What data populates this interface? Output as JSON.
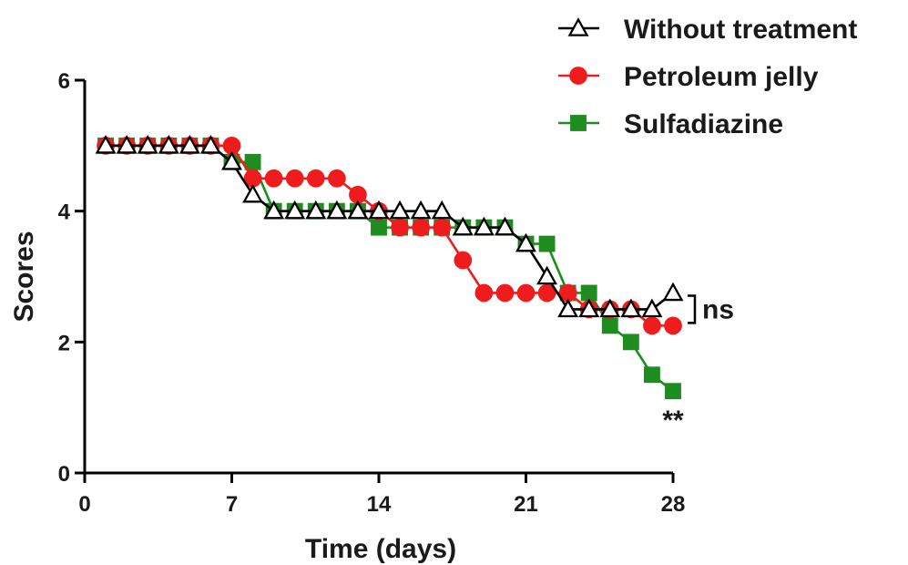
{
  "chart_data": {
    "type": "line",
    "title": "",
    "xlabel": "Time (days)",
    "ylabel": "Scores",
    "xlim": [
      0,
      28
    ],
    "ylim": [
      0,
      6
    ],
    "xticks": [
      0,
      7,
      14,
      21,
      28
    ],
    "yticks": [
      0,
      2,
      4,
      6
    ],
    "grid": false,
    "legend_position": "top-right",
    "x": [
      1,
      2,
      3,
      4,
      5,
      6,
      7,
      8,
      9,
      10,
      11,
      12,
      13,
      14,
      15,
      16,
      17,
      18,
      19,
      20,
      21,
      22,
      23,
      24,
      25,
      26,
      27,
      28
    ],
    "series": [
      {
        "name": "Without treatment",
        "color": "#000000",
        "marker": "triangle-open",
        "values": [
          5,
          5,
          5,
          5,
          5,
          5,
          4.75,
          4.25,
          4,
          4,
          4,
          4,
          4,
          4,
          4,
          4,
          4,
          3.75,
          3.75,
          3.75,
          3.5,
          3,
          2.5,
          2.5,
          2.5,
          2.5,
          2.5,
          2.75
        ]
      },
      {
        "name": "Petroleum jelly",
        "color": "#ee1c1c",
        "marker": "circle",
        "values": [
          5,
          5,
          5,
          5,
          5,
          5,
          5,
          4.5,
          4.5,
          4.5,
          4.5,
          4.5,
          4.25,
          4,
          3.75,
          3.75,
          3.75,
          3.25,
          2.75,
          2.75,
          2.75,
          2.75,
          2.75,
          2.5,
          2.5,
          2.5,
          2.25,
          2.25
        ]
      },
      {
        "name": "Sulfadiazine",
        "color": "#1e8c1e",
        "marker": "square",
        "values": [
          5,
          5,
          5,
          5,
          5,
          5,
          4.75,
          4.75,
          4,
          4,
          4,
          4,
          4,
          3.75,
          3.75,
          3.75,
          3.75,
          3.75,
          3.75,
          3.75,
          3.5,
          3.5,
          2.75,
          2.75,
          2.25,
          2,
          1.5,
          1.25
        ]
      }
    ],
    "annotations": [
      {
        "text": "ns",
        "attached_to": [
          "Without treatment",
          "Petroleum jelly"
        ],
        "at_x": 28,
        "style": "bracket"
      },
      {
        "text": "**",
        "attached_to": "Sulfadiazine",
        "at_x": 28,
        "style": "below-point"
      }
    ]
  }
}
